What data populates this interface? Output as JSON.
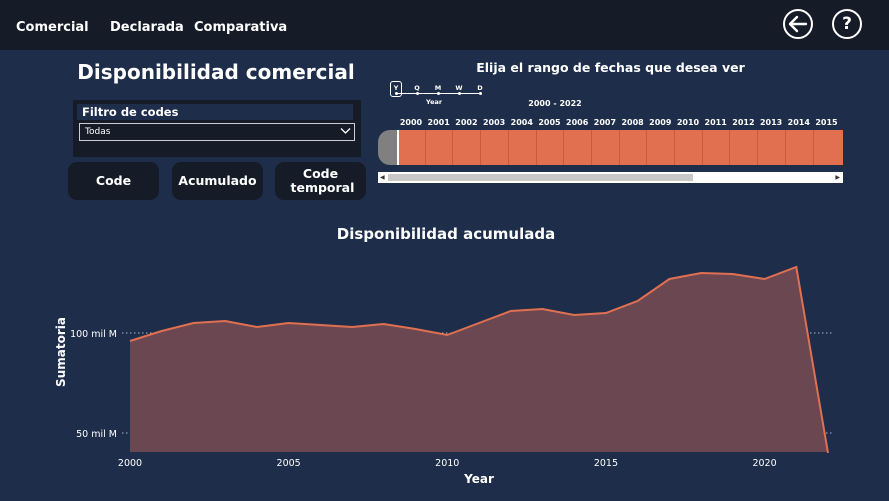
{
  "nav": {
    "items": [
      "Comercial",
      "Declarada",
      "Comparativa"
    ]
  },
  "header": {
    "back_icon": "arrow-left-icon",
    "help_icon": "question-icon",
    "help_glyph": "?"
  },
  "page_title": "Disponibilidad comercial",
  "filter": {
    "label": "Filtro de codes",
    "selected": "Todas"
  },
  "buttons": {
    "code": "Code",
    "acumulado": "Acumulado",
    "code_temporal": "Code temporal"
  },
  "date_picker": {
    "title": "Elija el rango de fechas que desea ver",
    "granularity": [
      "Y",
      "Q",
      "M",
      "W",
      "D"
    ],
    "granularity_selected": "Y",
    "granularity_caption": "Year",
    "range_caption": "2000 - 2022",
    "years": [
      "2000",
      "2001",
      "2002",
      "2003",
      "2004",
      "2005",
      "2006",
      "2007",
      "2008",
      "2009",
      "2010",
      "2011",
      "2012",
      "2013",
      "2014",
      "2015"
    ]
  },
  "colors": {
    "background": "#1d2d4a",
    "topbar": "#151c28",
    "accent": "#e07050",
    "area_fill": "#6b4752"
  },
  "chart_data": {
    "type": "area",
    "title": "Disponibilidad acumulada",
    "xlabel": "Year",
    "ylabel": "Sumatoria",
    "x": [
      2000,
      2001,
      2002,
      2003,
      2004,
      2005,
      2006,
      2007,
      2008,
      2009,
      2010,
      2011,
      2012,
      2013,
      2014,
      2015,
      2016,
      2017,
      2018,
      2019,
      2020,
      2021,
      2022
    ],
    "values": [
      96,
      101,
      105,
      106,
      103,
      105,
      104,
      103,
      104.5,
      102,
      99,
      105,
      111,
      112,
      109,
      110,
      116,
      127,
      130,
      129.5,
      127,
      133,
      40
    ],
    "xticks": [
      "2000",
      "2005",
      "2010",
      "2015",
      "2020"
    ],
    "yticks": [
      {
        "value": 50,
        "label": "50 mil M"
      },
      {
        "value": 100,
        "label": "100 mil M"
      }
    ],
    "grid": "dotted-horizontal",
    "legend": "none"
  }
}
